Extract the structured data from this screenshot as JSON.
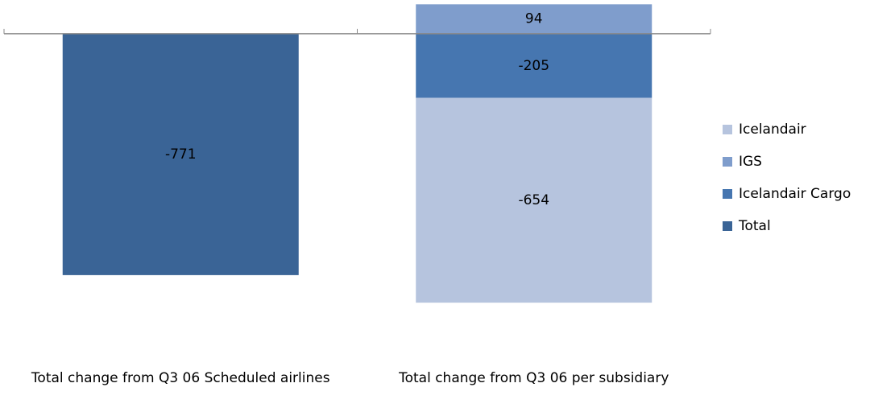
{
  "chart_data": {
    "type": "bar",
    "stacked": true,
    "categories": [
      "Total change from Q3 06  Scheduled airlines",
      "Total  change from Q3 06 per subsidiary"
    ],
    "series": [
      {
        "name": "Total",
        "color": "#3a6496",
        "values": [
          -771,
          null
        ]
      },
      {
        "name": "Icelandair Cargo",
        "color": "#4676b0",
        "values": [
          null,
          -205
        ]
      },
      {
        "name": "IGS",
        "color": "#7f9dcc",
        "values": [
          null,
          94
        ]
      },
      {
        "name": "Icelandair",
        "color": "#b6c4de",
        "values": [
          null,
          -654
        ]
      }
    ],
    "ylim": [
      -1000,
      100
    ],
    "legend": "right"
  }
}
